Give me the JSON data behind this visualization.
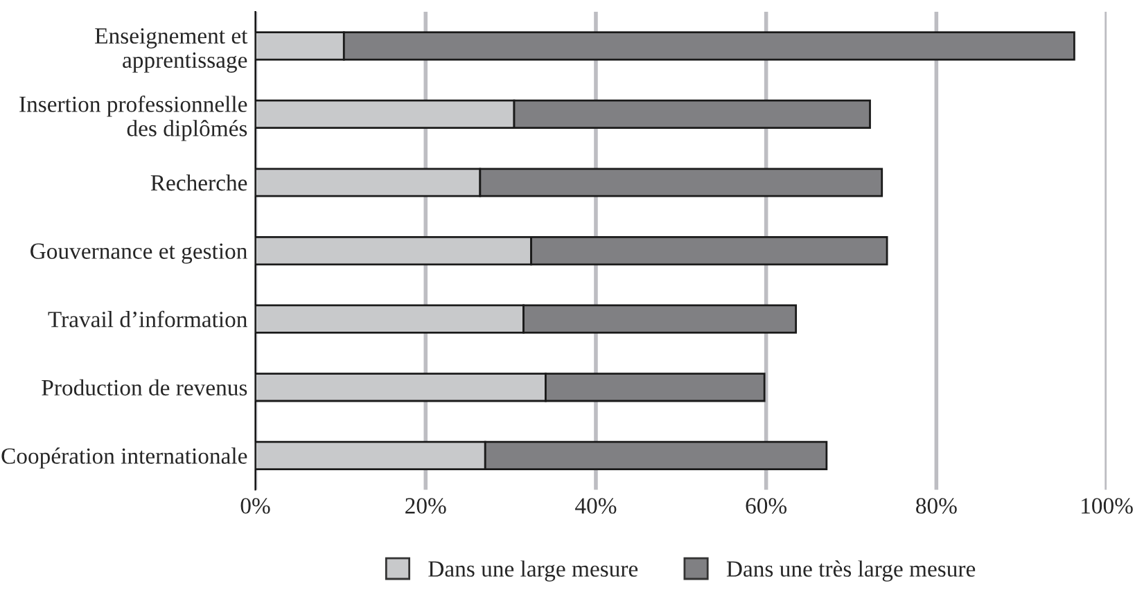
{
  "chart_data": {
    "type": "bar",
    "orientation": "horizontal",
    "stacked": true,
    "categories": [
      "Enseignement et\napprentissage",
      "Insertion professionnelle\ndes diplômés",
      "Recherche",
      "Gouvernance et gestion",
      "Travail d’information",
      "Production de revenus",
      "Coopération internationale"
    ],
    "series": [
      {
        "name": "Dans une large mesure",
        "color": "#c8c9cb",
        "values": [
          10.4,
          30.4,
          26.4,
          32.4,
          31.5,
          34.1,
          27.0
        ]
      },
      {
        "name": "Dans une très large mesure",
        "color": "#808083",
        "values": [
          85.8,
          41.8,
          47.2,
          41.8,
          32.0,
          25.7,
          40.1
        ]
      }
    ],
    "xlim": [
      0,
      100
    ],
    "xticks": [
      {
        "value": 0,
        "label": "0%"
      },
      {
        "value": 20,
        "label": "20%"
      },
      {
        "value": 40,
        "label": "40%"
      },
      {
        "value": 60,
        "label": "60%"
      },
      {
        "value": 80,
        "label": "80%"
      },
      {
        "value": 100,
        "label": "100%"
      }
    ],
    "grid": "x",
    "legend": "bottom"
  }
}
